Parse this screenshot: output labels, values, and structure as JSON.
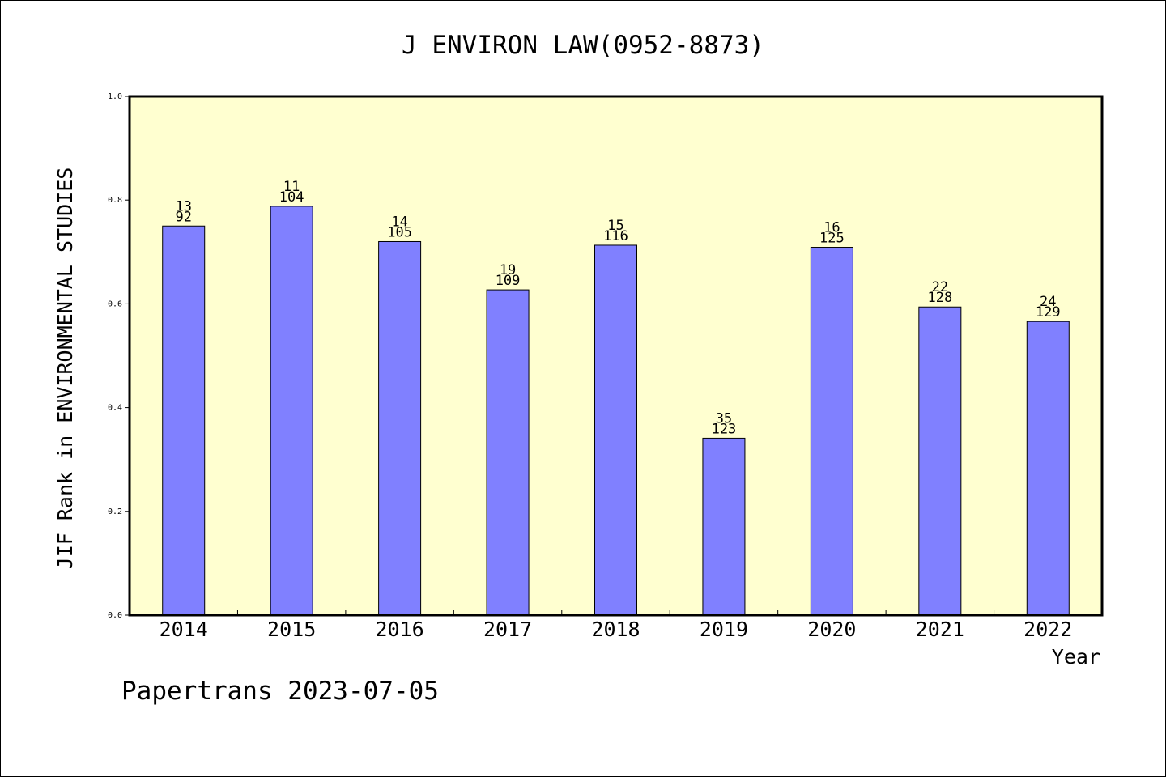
{
  "chart_data": {
    "type": "bar",
    "title": "J ENVIRON LAW(0952-8873)",
    "xlabel": "Year",
    "ylabel": "JIF Rank in ENVIRONMENTAL STUDIES",
    "ylim": [
      0,
      1.0
    ],
    "yticks": [
      "0.0",
      "0.2",
      "0.4",
      "0.6",
      "0.8",
      "1.0"
    ],
    "categories": [
      "2014",
      "2015",
      "2016",
      "2017",
      "2018",
      "2019",
      "2020",
      "2021",
      "2022"
    ],
    "values": [
      0.75,
      0.788,
      0.72,
      0.627,
      0.713,
      0.341,
      0.709,
      0.594,
      0.566
    ],
    "rank": [
      "13",
      "11",
      "14",
      "19",
      "15",
      "35",
      "16",
      "22",
      "24"
    ],
    "total": [
      "92",
      "104",
      "105",
      "109",
      "116",
      "123",
      "125",
      "128",
      "129"
    ],
    "grid": false,
    "colors": {
      "bar": "#8080ff",
      "plot_bg": "#ffffd0",
      "axis": "#000000"
    }
  },
  "footer": "Papertrans 2023-07-05"
}
